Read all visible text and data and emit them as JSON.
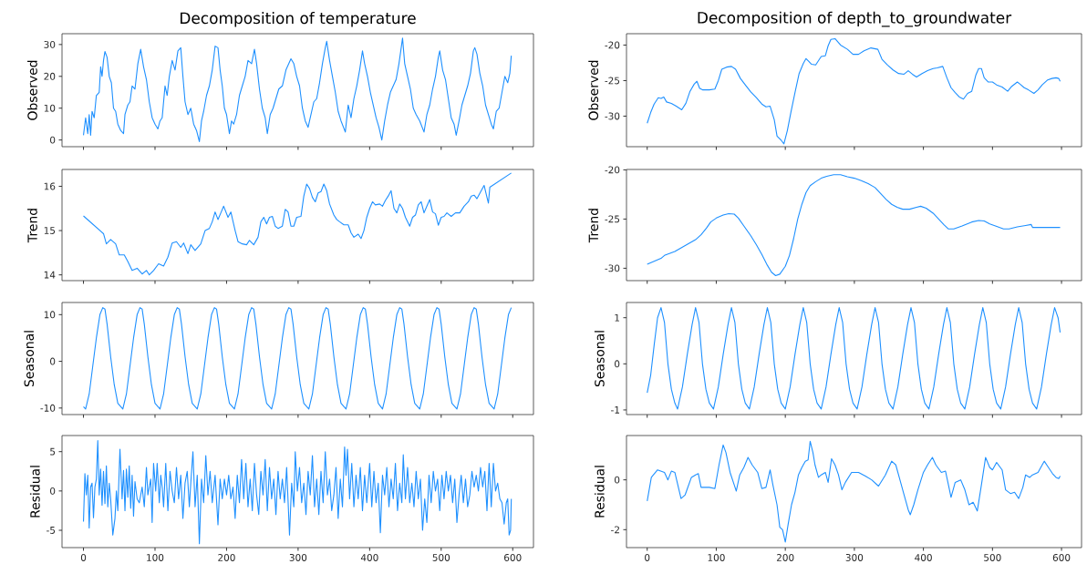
{
  "chart_data": [
    {
      "type": "line",
      "title": "Decomposition of temperature",
      "ylabel": "Observed",
      "color": "#1e90ff",
      "tick_labels": "y",
      "xlim": [
        -30,
        629
      ],
      "ylim": [
        -2.1,
        33.4
      ],
      "xticks": [
        0,
        100,
        200,
        300,
        400,
        500,
        600
      ],
      "yticks": [
        0,
        10,
        20,
        30
      ],
      "x": [
        0,
        3,
        6,
        8,
        10,
        12,
        15,
        18,
        22,
        24,
        26,
        28,
        30,
        33,
        36,
        39,
        42,
        45,
        48,
        52,
        56,
        58,
        62,
        65,
        68,
        72,
        76,
        80,
        84,
        88,
        92,
        96,
        100,
        104,
        107,
        110,
        114,
        117,
        120,
        124,
        128,
        132,
        136,
        139,
        142,
        146,
        150,
        154,
        158,
        162,
        165,
        168,
        172,
        176,
        180,
        184,
        188,
        191,
        194,
        197,
        200,
        204,
        207,
        210,
        214,
        218,
        222,
        226,
        230,
        235,
        239,
        242,
        246,
        250,
        254,
        257,
        261,
        265,
        269,
        273,
        278,
        283,
        287,
        290,
        294,
        298,
        302,
        306,
        310,
        314,
        318,
        322,
        326,
        330,
        334,
        338,
        340,
        344,
        348,
        352,
        356,
        360,
        366,
        370,
        374,
        378,
        382,
        386,
        390,
        393,
        397,
        401,
        405,
        409,
        413,
        417,
        421,
        425,
        429,
        433,
        437,
        441,
        446,
        449,
        453,
        457,
        461,
        465,
        470,
        476,
        480,
        484,
        488,
        492,
        496,
        498,
        502,
        506,
        510,
        514,
        518,
        521,
        525,
        529,
        533,
        537,
        541,
        545,
        547,
        550,
        554,
        558,
        562,
        566,
        570,
        573,
        577,
        581,
        585,
        589,
        593,
        596,
        598
      ],
      "values": [
        1.5,
        7,
        2,
        8,
        1.5,
        9,
        7,
        14,
        15,
        23,
        20,
        25,
        27.8,
        26,
        20,
        18,
        10,
        9,
        5,
        3,
        2,
        8,
        11,
        12,
        17,
        16,
        24,
        28.5,
        23,
        19,
        12,
        7,
        5,
        3.5,
        6,
        7,
        17,
        14,
        20,
        25,
        22,
        28,
        29,
        20,
        12,
        8,
        10,
        5,
        3,
        -0.5,
        6,
        9,
        14,
        17,
        22,
        29.5,
        29,
        22,
        17,
        10,
        8,
        2,
        6,
        5,
        8,
        14,
        17,
        20,
        25,
        24,
        28.5,
        24,
        16,
        10,
        7,
        2,
        8,
        10,
        13,
        16,
        17,
        22,
        24,
        25.5,
        24,
        20,
        17,
        10,
        6,
        4,
        8,
        12,
        13,
        18,
        24,
        29,
        31,
        25,
        20,
        15,
        9,
        6,
        2.5,
        11,
        7,
        13,
        17,
        22,
        28,
        24,
        20,
        15,
        11,
        7,
        4,
        0,
        6,
        11,
        15,
        17,
        19,
        24,
        32,
        24,
        20,
        16,
        10,
        8,
        6,
        2.5,
        8,
        11,
        16,
        20,
        26,
        28,
        22,
        19,
        13,
        7,
        5,
        1.5,
        6,
        11,
        14,
        17,
        21,
        28,
        29,
        27,
        21,
        17,
        11,
        8,
        5,
        3.5,
        9,
        10,
        15,
        20,
        18,
        21,
        26.5
      ]
    },
    {
      "type": "line",
      "title": "Decomposition of depth_to_groundwater",
      "ylabel": "Observed",
      "color": "#1e90ff",
      "tick_labels": "y",
      "xlim": [
        -30,
        629
      ],
      "ylim": [
        -34.3,
        -18.4
      ],
      "xticks": [
        0,
        100,
        200,
        300,
        400,
        500,
        600
      ],
      "yticks": [
        -30,
        -25,
        -20
      ],
      "x": [
        0,
        5,
        10,
        16,
        20,
        24,
        28,
        35,
        42,
        50,
        56,
        62,
        68,
        72,
        76,
        80,
        90,
        98,
        103,
        108,
        115,
        122,
        128,
        135,
        142,
        150,
        158,
        166,
        172,
        178,
        184,
        188,
        194,
        198,
        203,
        208,
        214,
        220,
        226,
        230,
        234,
        238,
        244,
        252,
        258,
        262,
        266,
        272,
        280,
        290,
        298,
        306,
        314,
        324,
        334,
        340,
        348,
        356,
        364,
        372,
        378,
        384,
        390,
        398,
        406,
        414,
        420,
        428,
        434,
        440,
        446,
        452,
        458,
        464,
        470,
        476,
        480,
        484,
        488,
        494,
        500,
        506,
        514,
        522,
        528,
        536,
        540,
        546,
        552,
        560,
        566,
        572,
        580,
        586,
        592,
        596,
        598
      ],
      "values": [
        -31,
        -29.5,
        -28.3,
        -27.4,
        -27.5,
        -27.3,
        -28.0,
        -28.2,
        -28.6,
        -29.1,
        -28.2,
        -26.5,
        -25.5,
        -25.1,
        -26.1,
        -26.3,
        -26.3,
        -26.2,
        -25.0,
        -23.4,
        -23.1,
        -23.0,
        -23.4,
        -24.7,
        -25.6,
        -26.6,
        -27.4,
        -28.3,
        -28.7,
        -28.6,
        -30.5,
        -32.8,
        -33.4,
        -33.9,
        -32.0,
        -29.5,
        -26.7,
        -24.0,
        -22.6,
        -21.9,
        -22.3,
        -22.7,
        -22.8,
        -21.6,
        -21.5,
        -20.1,
        -19.2,
        -19.1,
        -20.0,
        -20.6,
        -21.3,
        -21.3,
        -20.8,
        -20.4,
        -20.6,
        -22.0,
        -22.8,
        -23.5,
        -24.0,
        -24.1,
        -23.6,
        -24.1,
        -24.5,
        -24.0,
        -23.6,
        -23.3,
        -23.2,
        -23.0,
        -24.6,
        -26.0,
        -26.7,
        -27.3,
        -27.6,
        -26.8,
        -26.5,
        -24.2,
        -23.3,
        -23.3,
        -24.6,
        -25.2,
        -25.2,
        -25.6,
        -25.9,
        -26.5,
        -25.8,
        -25.2,
        -25.5,
        -26.0,
        -26.3,
        -26.8,
        -26.3,
        -25.6,
        -24.9,
        -24.7,
        -24.6,
        -24.7,
        -25.1
      ]
    },
    {
      "type": "line",
      "ylabel": "Trend",
      "color": "#1e90ff",
      "tick_labels": "y",
      "xlim": [
        -30,
        629
      ],
      "ylim": [
        13.87,
        16.38
      ],
      "xticks": [
        0,
        100,
        200,
        300,
        400,
        500,
        600
      ],
      "yticks": [
        14,
        15,
        16
      ],
      "x": [
        0,
        28,
        32,
        38,
        45,
        50,
        57,
        62,
        68,
        75,
        82,
        88,
        92,
        98,
        105,
        112,
        118,
        124,
        130,
        136,
        140,
        146,
        150,
        156,
        164,
        170,
        176,
        180,
        184,
        188,
        192,
        196,
        202,
        206,
        212,
        216,
        222,
        228,
        232,
        238,
        244,
        248,
        252,
        256,
        260,
        264,
        268,
        272,
        278,
        282,
        286,
        290,
        294,
        298,
        304,
        308,
        312,
        316,
        320,
        324,
        328,
        332,
        336,
        340,
        344,
        350,
        354,
        358,
        364,
        370,
        374,
        378,
        384,
        388,
        392,
        396,
        400,
        404,
        408,
        414,
        418,
        422,
        426,
        430,
        434,
        438,
        442,
        446,
        450,
        456,
        460,
        464,
        468,
        472,
        476,
        480,
        484,
        488,
        492,
        496,
        500,
        504,
        508,
        514,
        520,
        526,
        532,
        538,
        542,
        546,
        550,
        556,
        560,
        564,
        566,
        568,
        598
      ],
      "values": [
        15.33,
        14.93,
        14.7,
        14.8,
        14.7,
        14.45,
        14.45,
        14.3,
        14.1,
        14.15,
        14.02,
        14.1,
        14.0,
        14.1,
        14.25,
        14.2,
        14.4,
        14.72,
        14.75,
        14.62,
        14.72,
        14.48,
        14.68,
        14.55,
        14.7,
        15.0,
        15.05,
        15.2,
        15.42,
        15.25,
        15.4,
        15.55,
        15.3,
        15.42,
        15.0,
        14.75,
        14.7,
        14.68,
        14.78,
        14.68,
        14.85,
        15.2,
        15.3,
        15.15,
        15.3,
        15.32,
        15.1,
        15.05,
        15.1,
        15.48,
        15.42,
        15.1,
        15.1,
        15.3,
        15.32,
        15.78,
        16.05,
        15.95,
        15.75,
        15.65,
        15.85,
        15.88,
        16.05,
        15.9,
        15.6,
        15.35,
        15.25,
        15.2,
        15.13,
        15.13,
        14.95,
        14.85,
        14.92,
        14.82,
        15.0,
        15.3,
        15.5,
        15.65,
        15.58,
        15.6,
        15.55,
        15.68,
        15.78,
        15.9,
        15.5,
        15.4,
        15.6,
        15.5,
        15.3,
        15.1,
        15.3,
        15.35,
        15.58,
        15.65,
        15.4,
        15.55,
        15.7,
        15.42,
        15.38,
        15.12,
        15.3,
        15.32,
        15.4,
        15.32,
        15.4,
        15.4,
        15.55,
        15.65,
        15.78,
        15.8,
        15.72,
        15.9,
        16.02,
        15.75,
        15.62,
        15.98,
        16.3
      ]
    },
    {
      "type": "line",
      "ylabel": "Trend",
      "color": "#1e90ff",
      "tick_labels": "y",
      "xlim": [
        -30,
        629
      ],
      "ylim": [
        -31.26,
        -19.96
      ],
      "xticks": [
        0,
        100,
        200,
        300,
        400,
        500,
        600
      ],
      "yticks": [
        -30,
        -25,
        -20
      ],
      "x": [
        0,
        20,
        25,
        40,
        55,
        70,
        78,
        86,
        92,
        100,
        110,
        118,
        126,
        132,
        140,
        150,
        158,
        166,
        174,
        180,
        186,
        192,
        200,
        206,
        212,
        218,
        224,
        230,
        236,
        244,
        252,
        260,
        270,
        280,
        290,
        300,
        310,
        320,
        330,
        338,
        346,
        354,
        362,
        370,
        380,
        390,
        396,
        404,
        414,
        422,
        430,
        436,
        444,
        456,
        470,
        480,
        488,
        496,
        508,
        516,
        524,
        536,
        548,
        556,
        558,
        580,
        598
      ],
      "values": [
        -29.6,
        -29.0,
        -28.7,
        -28.3,
        -27.7,
        -27.1,
        -26.6,
        -25.9,
        -25.3,
        -24.9,
        -24.6,
        -24.45,
        -24.5,
        -24.9,
        -25.7,
        -26.7,
        -27.6,
        -28.6,
        -29.7,
        -30.4,
        -30.75,
        -30.6,
        -29.8,
        -28.7,
        -27.0,
        -25.0,
        -23.5,
        -22.3,
        -21.6,
        -21.2,
        -20.85,
        -20.65,
        -20.5,
        -20.5,
        -20.7,
        -20.85,
        -21.1,
        -21.4,
        -21.8,
        -22.4,
        -23.0,
        -23.5,
        -23.8,
        -24.0,
        -24.0,
        -23.8,
        -23.7,
        -23.9,
        -24.4,
        -25.0,
        -25.6,
        -26.0,
        -26.0,
        -25.7,
        -25.3,
        -25.15,
        -25.2,
        -25.5,
        -25.8,
        -26.0,
        -26.0,
        -25.8,
        -25.65,
        -25.55,
        -25.85,
        -25.85,
        -25.85
      ]
    },
    {
      "type": "line",
      "ylabel": "Seasonal",
      "color": "#1e90ff",
      "tick_labels": "y",
      "xlim": [
        -30,
        629
      ],
      "ylim": [
        -11.4,
        12.6
      ],
      "xticks": [
        0,
        100,
        200,
        300,
        400,
        500,
        600
      ],
      "yticks": [
        -10,
        0,
        10
      ],
      "x": [
        0,
        3,
        8,
        13,
        18,
        23,
        27,
        30,
        33,
        38,
        43,
        48,
        55,
        60,
        65,
        70,
        75,
        79,
        82,
        85,
        90,
        95,
        100,
        107,
        112,
        117,
        122,
        127,
        131,
        134,
        137,
        142,
        147,
        152,
        159,
        164,
        169,
        174,
        179,
        183,
        186,
        189,
        194,
        199,
        204,
        211,
        216,
        221,
        226,
        231,
        235,
        238,
        241,
        246,
        251,
        256,
        263,
        268,
        273,
        278,
        283,
        287,
        290,
        293,
        298,
        303,
        308,
        315,
        320,
        325,
        330,
        335,
        339,
        342,
        345,
        350,
        355,
        360,
        367,
        372,
        377,
        382,
        387,
        391,
        394,
        397,
        402,
        407,
        412,
        418,
        423,
        428,
        433,
        438,
        442,
        445,
        448,
        453,
        458,
        463,
        470,
        475,
        480,
        485,
        490,
        494,
        497,
        500,
        505,
        510,
        515,
        522,
        527,
        532,
        537,
        542,
        546,
        549,
        552,
        557,
        562,
        567,
        574,
        579,
        584,
        589,
        594,
        598
      ],
      "values": [
        -9.7,
        -10.2,
        -7,
        -1,
        5,
        10,
        11.5,
        11.2,
        8,
        1,
        -5,
        -9,
        -10.2,
        -7,
        -1,
        5,
        10,
        11.5,
        11.2,
        8,
        1,
        -5,
        -9,
        -10.2,
        -7,
        -1,
        5,
        10,
        11.5,
        11.2,
        8,
        1,
        -5,
        -9,
        -10.2,
        -7,
        -1,
        5,
        10,
        11.5,
        11.2,
        8,
        1,
        -5,
        -9,
        -10.2,
        -7,
        -1,
        5,
        10,
        11.5,
        11.2,
        8,
        1,
        -5,
        -9,
        -10.2,
        -7,
        -1,
        5,
        10,
        11.5,
        11.2,
        8,
        1,
        -5,
        -9,
        -10.2,
        -7,
        -1,
        5,
        10,
        11.5,
        11.2,
        8,
        1,
        -5,
        -9,
        -10.2,
        -7,
        -1,
        5,
        10,
        11.5,
        11.2,
        8,
        1,
        -5,
        -9,
        -10.2,
        -7,
        -1,
        5,
        10,
        11.5,
        11.2,
        8,
        1,
        -5,
        -9,
        -10.2,
        -7,
        -1,
        5,
        10,
        11.5,
        11.2,
        8,
        1,
        -5,
        -9,
        -10.2,
        -7,
        -1,
        5,
        10,
        11.5,
        11.2,
        8,
        1,
        -5,
        -9,
        -10.2,
        -7,
        -1,
        5,
        10,
        11.5
      ]
    },
    {
      "type": "line",
      "ylabel": "Seasonal",
      "color": "#1e90ff",
      "tick_labels": "y",
      "xlim": [
        -30,
        629
      ],
      "ylim": [
        -1.1,
        1.33
      ],
      "xticks": [
        0,
        100,
        200,
        300,
        400,
        500,
        600
      ],
      "yticks": [
        -1,
        0,
        1
      ],
      "x": [
        0,
        5,
        10,
        15,
        20,
        25,
        30,
        35,
        40,
        44,
        51,
        58,
        65,
        70,
        75,
        80,
        85,
        90,
        96,
        103,
        110,
        117,
        122,
        127,
        132,
        137,
        142,
        148,
        155,
        162,
        169,
        174,
        179,
        184,
        189,
        194,
        200,
        207,
        214,
        221,
        226,
        231,
        236,
        241,
        246,
        252,
        259,
        266,
        273,
        278,
        283,
        288,
        293,
        298,
        304,
        311,
        318,
        325,
        330,
        335,
        340,
        345,
        350,
        356,
        363,
        370,
        377,
        382,
        387,
        392,
        397,
        402,
        408,
        415,
        422,
        429,
        434,
        439,
        444,
        449,
        454,
        460,
        467,
        474,
        481,
        486,
        491,
        496,
        501,
        506,
        512,
        519,
        526,
        533,
        538,
        543,
        548,
        553,
        558,
        564,
        571,
        578,
        585,
        590,
        595,
        598
      ],
      "values": [
        -0.63,
        -0.25,
        0.4,
        1.0,
        1.22,
        0.9,
        0.0,
        -0.55,
        -0.85,
        -0.98,
        -0.5,
        0.2,
        0.85,
        1.22,
        0.9,
        0.0,
        -0.55,
        -0.85,
        -0.98,
        -0.5,
        0.2,
        0.85,
        1.22,
        0.9,
        0.0,
        -0.55,
        -0.85,
        -0.98,
        -0.5,
        0.2,
        0.85,
        1.22,
        0.9,
        0.0,
        -0.55,
        -0.85,
        -0.98,
        -0.5,
        0.2,
        0.85,
        1.22,
        0.9,
        0.0,
        -0.55,
        -0.85,
        -0.98,
        -0.5,
        0.2,
        0.85,
        1.22,
        0.9,
        0.0,
        -0.55,
        -0.85,
        -0.98,
        -0.5,
        0.2,
        0.85,
        1.22,
        0.9,
        0.0,
        -0.55,
        -0.85,
        -0.98,
        -0.5,
        0.2,
        0.85,
        1.22,
        0.9,
        0.0,
        -0.55,
        -0.85,
        -0.98,
        -0.5,
        0.2,
        0.85,
        1.22,
        0.9,
        0.0,
        -0.55,
        -0.85,
        -0.98,
        -0.5,
        0.2,
        0.85,
        1.22,
        0.9,
        0.0,
        -0.55,
        -0.85,
        -0.98,
        -0.5,
        0.2,
        0.85,
        1.22,
        0.9,
        0.0,
        -0.55,
        -0.85,
        -0.98,
        -0.5,
        0.2,
        0.85,
        1.22,
        1.0,
        0.68
      ]
    },
    {
      "type": "line",
      "ylabel": "Residual",
      "color": "#1e90ff",
      "xlim": [
        -30,
        629
      ],
      "ylim": [
        -7.2,
        7.05
      ],
      "xticks": [
        0,
        100,
        200,
        300,
        400,
        500,
        600
      ],
      "yticks": [
        -5,
        0,
        5
      ],
      "x": [
        0,
        2,
        4,
        6,
        8,
        10,
        12,
        14,
        16,
        18,
        20,
        22,
        24,
        26,
        28,
        30,
        32,
        34,
        36,
        38,
        41,
        44,
        46,
        48,
        51,
        54,
        56,
        58,
        60,
        62,
        64,
        66,
        68,
        70,
        72,
        75,
        78,
        82,
        85,
        88,
        90,
        94,
        96,
        98,
        101,
        103,
        106,
        108,
        110,
        112,
        115,
        118,
        121,
        124,
        127,
        130,
        133,
        136,
        139,
        142,
        145,
        148,
        150,
        153,
        156,
        159,
        162,
        165,
        168,
        171,
        174,
        177,
        180,
        184,
        188,
        191,
        194,
        197,
        200,
        203,
        206,
        209,
        212,
        215,
        218,
        221,
        224,
        227,
        230,
        233,
        236,
        239,
        242,
        245,
        248,
        251,
        254,
        257,
        260,
        263,
        266,
        269,
        272,
        275,
        278,
        281,
        284,
        288,
        291,
        294,
        296,
        299,
        302,
        305,
        308,
        311,
        314,
        317,
        320,
        323,
        326,
        329,
        332,
        335,
        338,
        341,
        344,
        347,
        350,
        353,
        356,
        359,
        362,
        365,
        367,
        369,
        372,
        375,
        378,
        381,
        384,
        387,
        390,
        393,
        396,
        400,
        403,
        406,
        409,
        412,
        415,
        418,
        421,
        424,
        427,
        430,
        433,
        436,
        439,
        442,
        445,
        447,
        450,
        453,
        456,
        459,
        462,
        465,
        468,
        471,
        474,
        477,
        480,
        483,
        486,
        489,
        492,
        495,
        498,
        501,
        504,
        507,
        510,
        513,
        516,
        519,
        522,
        525,
        528,
        531,
        534,
        537,
        540,
        543,
        546,
        549,
        552,
        555,
        558,
        561,
        564,
        567,
        570,
        573,
        576,
        579,
        582,
        585,
        588,
        591,
        593,
        595,
        597,
        598
      ],
      "values": [
        -3.9,
        2.2,
        -0.5,
        2.0,
        -4.7,
        0.5,
        1.0,
        -3.4,
        0.5,
        1.5,
        6.4,
        -0.5,
        2.8,
        -1.8,
        2.5,
        -1.6,
        3.2,
        -2.0,
        1.0,
        -1.0,
        -5.6,
        -3.5,
        0.0,
        -2.5,
        5.3,
        -1.0,
        2.6,
        -2.5,
        2.8,
        -0.8,
        3.2,
        -2.2,
        2.0,
        -3.2,
        1.2,
        -1.0,
        -1.5,
        0.5,
        -2.0,
        3.0,
        -0.5,
        1.5,
        -4.0,
        3.5,
        0.0,
        3.5,
        -1.5,
        2.0,
        0.5,
        -2.0,
        3.5,
        -2.5,
        2.5,
        0.0,
        -1.5,
        3.0,
        -1.0,
        2.0,
        -3.5,
        1.0,
        2.5,
        -2.0,
        1.0,
        5.0,
        -2.0,
        2.0,
        -6.7,
        1.5,
        -1.5,
        4.5,
        -0.5,
        2.5,
        -1.5,
        2.0,
        -4.3,
        1.5,
        -1.0,
        1.5,
        -0.5,
        2.0,
        -1.0,
        0.5,
        -3.5,
        2.0,
        -1.5,
        4.0,
        -1.0,
        3.5,
        -2.0,
        1.5,
        -2.5,
        3.5,
        -0.5,
        -3.0,
        2.5,
        -0.5,
        4.0,
        -2.5,
        3.0,
        -1.0,
        1.5,
        -3.0,
        2.5,
        -1.0,
        1.5,
        -1.5,
        3.0,
        -5.6,
        1.0,
        -2.0,
        5.0,
        0.0,
        3.0,
        -1.5,
        1.0,
        -3.0,
        2.5,
        -0.5,
        4.5,
        -2.0,
        1.5,
        -3.0,
        2.5,
        -1.5,
        5.0,
        -0.5,
        1.5,
        -2.5,
        -0.5,
        3.0,
        -3.5,
        1.5,
        -2.0,
        5.6,
        2.0,
        5.3,
        -1.0,
        3.5,
        -2.0,
        2.0,
        -1.0,
        3.0,
        -2.5,
        2.0,
        -1.5,
        3.5,
        -2.0,
        2.5,
        -1.5,
        1.0,
        -5.3,
        2.0,
        -0.5,
        3.0,
        -2.0,
        1.5,
        -1.0,
        3.5,
        -2.5,
        1.0,
        -1.5,
        4.6,
        -1.0,
        3.0,
        -1.5,
        1.0,
        -2.0,
        2.5,
        -1.0,
        1.5,
        -5.0,
        -1.0,
        -4.0,
        2.0,
        -1.5,
        2.5,
        0.0,
        1.5,
        -2.5,
        2.0,
        -1.0,
        2.5,
        0.0,
        2.0,
        -1.5,
        1.5,
        -4.0,
        -0.5,
        2.0,
        -1.5,
        1.5,
        -2.0,
        -0.5,
        2.5,
        0.5,
        2.0,
        0.0,
        3.0,
        0.5,
        2.5,
        -2.5,
        3.5,
        -2.0,
        3.5,
        0.0,
        1.0,
        -1.0,
        -1.5,
        -4.2,
        -1.5,
        -1.0,
        -5.6,
        -5.0,
        -1.0
      ]
    },
    {
      "type": "line",
      "ylabel": "Residual",
      "color": "#1e90ff",
      "xlim": [
        -30,
        629
      ],
      "ylim": [
        -2.72,
        1.78
      ],
      "xticks": [
        0,
        100,
        200,
        300,
        400,
        500,
        600
      ],
      "yticks": [
        -2,
        0
      ],
      "x": [
        0,
        6,
        15,
        25,
        30,
        35,
        40,
        49,
        55,
        64,
        70,
        74,
        78,
        90,
        98,
        104,
        110,
        114,
        120,
        126,
        129,
        134,
        140,
        146,
        152,
        160,
        166,
        172,
        178,
        182,
        188,
        192,
        196,
        200,
        204,
        209,
        214,
        219,
        224,
        229,
        233,
        236,
        240,
        243,
        248,
        252,
        258,
        262,
        267,
        272,
        277,
        282,
        287,
        296,
        306,
        316,
        325,
        335,
        345,
        354,
        360,
        366,
        372,
        378,
        381,
        386,
        392,
        400,
        406,
        413,
        418,
        426,
        432,
        437,
        440,
        446,
        454,
        460,
        466,
        472,
        478,
        484,
        490,
        496,
        500,
        506,
        514,
        519,
        526,
        532,
        538,
        544,
        548,
        554,
        558,
        566,
        575,
        581,
        587,
        592,
        596,
        598
      ],
      "values": [
        -0.85,
        0.1,
        0.4,
        0.3,
        0.0,
        0.35,
        0.3,
        -0.75,
        -0.6,
        0.1,
        0.2,
        0.25,
        -0.3,
        -0.3,
        -0.35,
        0.6,
        1.4,
        1.1,
        0.3,
        -0.2,
        -0.45,
        0.2,
        0.5,
        0.9,
        0.6,
        0.3,
        -0.35,
        -0.3,
        0.4,
        -0.2,
        -1.0,
        -1.9,
        -2.0,
        -2.5,
        -1.8,
        -1.0,
        -0.5,
        0.2,
        0.5,
        0.75,
        0.8,
        1.55,
        1.1,
        0.6,
        0.1,
        0.2,
        0.3,
        -0.1,
        0.85,
        0.6,
        0.2,
        -0.4,
        -0.1,
        0.3,
        0.3,
        0.15,
        0.0,
        -0.25,
        0.2,
        0.75,
        0.6,
        0.0,
        -0.6,
        -1.2,
        -1.4,
        -1.0,
        -0.4,
        0.3,
        0.6,
        0.9,
        0.6,
        0.3,
        0.35,
        -0.3,
        -0.7,
        -0.1,
        0.0,
        -0.4,
        -1.0,
        -0.9,
        -1.25,
        -0.2,
        0.9,
        0.5,
        0.4,
        0.7,
        0.4,
        -0.4,
        -0.55,
        -0.5,
        -0.75,
        -0.3,
        0.2,
        0.1,
        0.2,
        0.3,
        0.75,
        0.5,
        0.25,
        0.1,
        0.05,
        0.15
      ]
    }
  ]
}
